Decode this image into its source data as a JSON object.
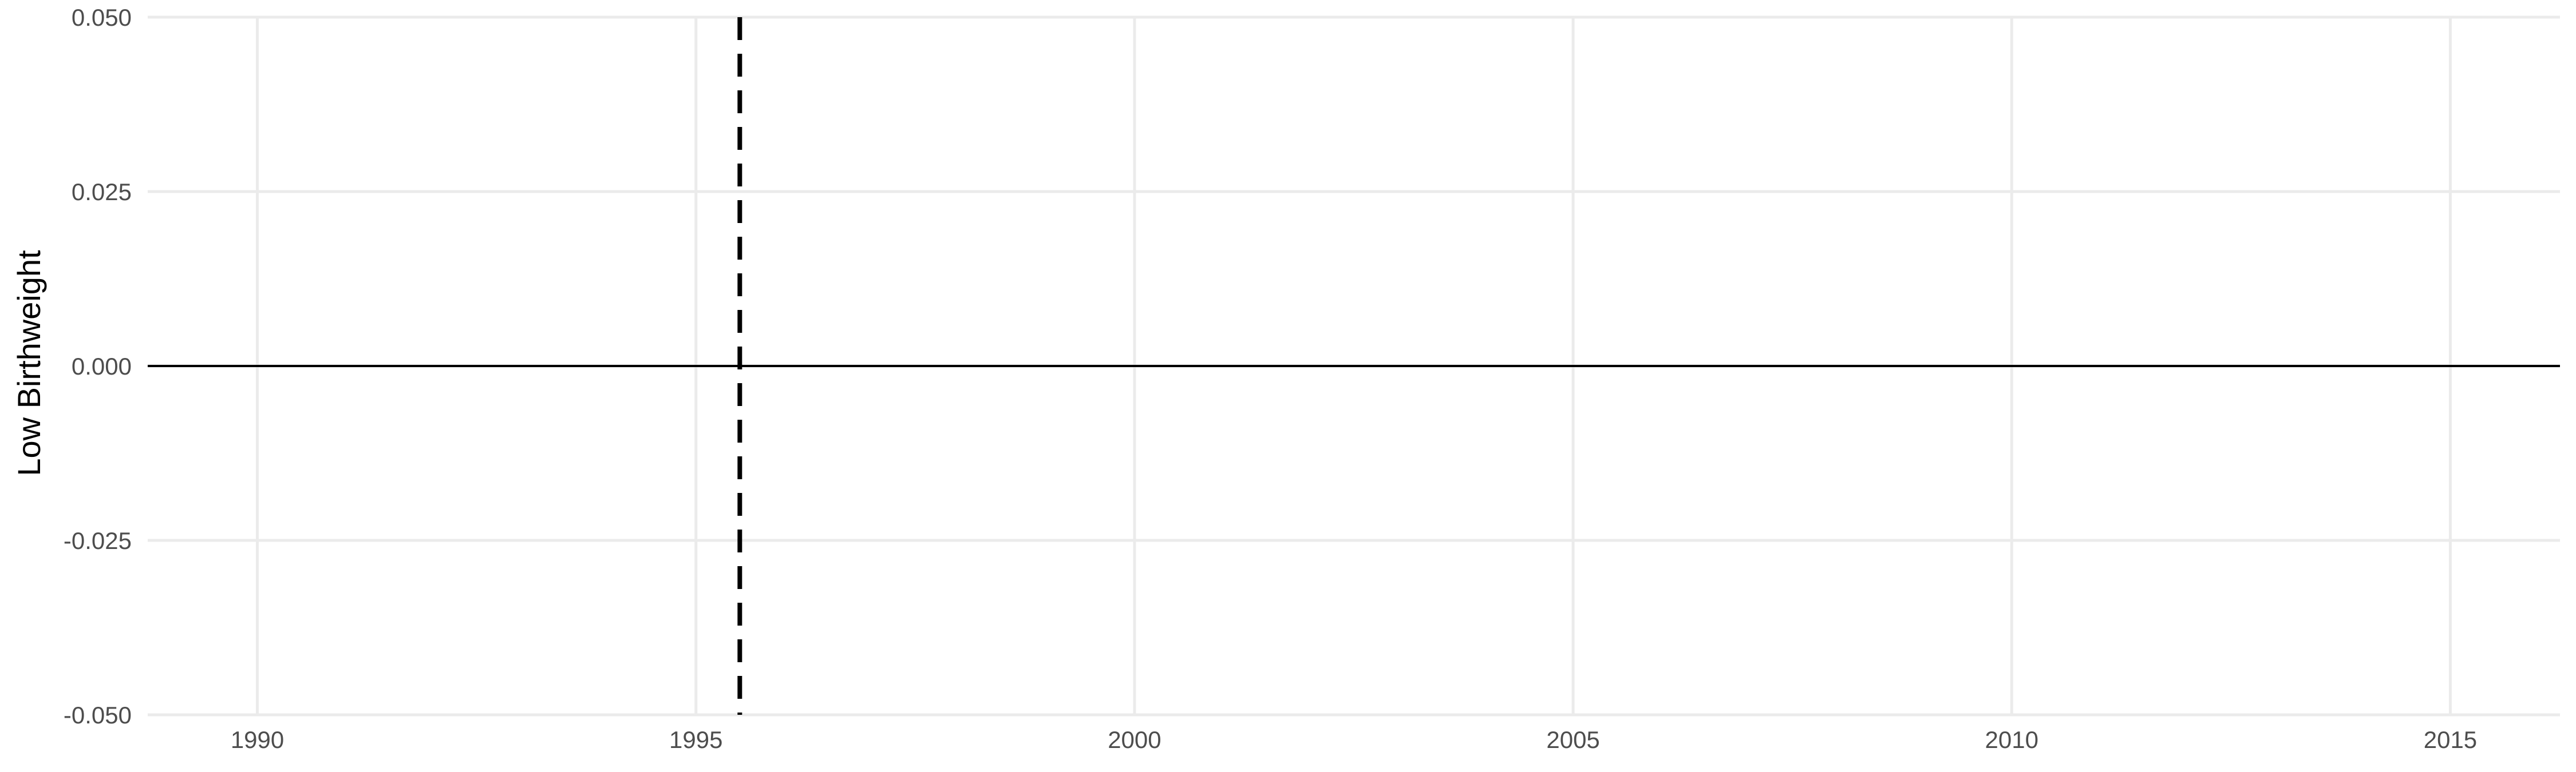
{
  "chart_data": {
    "type": "line",
    "title": "",
    "xlabel": "",
    "ylabel": "Low Birthweight",
    "xlim": [
      1988.75,
      2016.25
    ],
    "ylim": [
      -0.05,
      0.05
    ],
    "x_ticks": [
      1990,
      1995,
      2000,
      2005,
      2010,
      2015
    ],
    "x_tick_labels": [
      "1990",
      "1995",
      "2000",
      "2005",
      "2010",
      "2015"
    ],
    "y_ticks": [
      -0.05,
      -0.025,
      0,
      0.025,
      0.05
    ],
    "y_tick_labels": [
      "-0.050",
      "-0.025",
      "0.000",
      "0.025",
      "0.050"
    ],
    "series": [],
    "reference_lines": {
      "horizontal": [
        {
          "y": 0,
          "style": "solid",
          "color": "#000000"
        }
      ],
      "vertical": [
        {
          "x": 1995.5,
          "style": "dashed",
          "color": "#000000"
        }
      ]
    },
    "grid": true,
    "legend": "none"
  },
  "colors": {
    "background": "#ffffff",
    "grid": "#ebebeb",
    "reference": "#000000",
    "tick_text": "#4d4d4d",
    "axis_title": "#000000"
  }
}
